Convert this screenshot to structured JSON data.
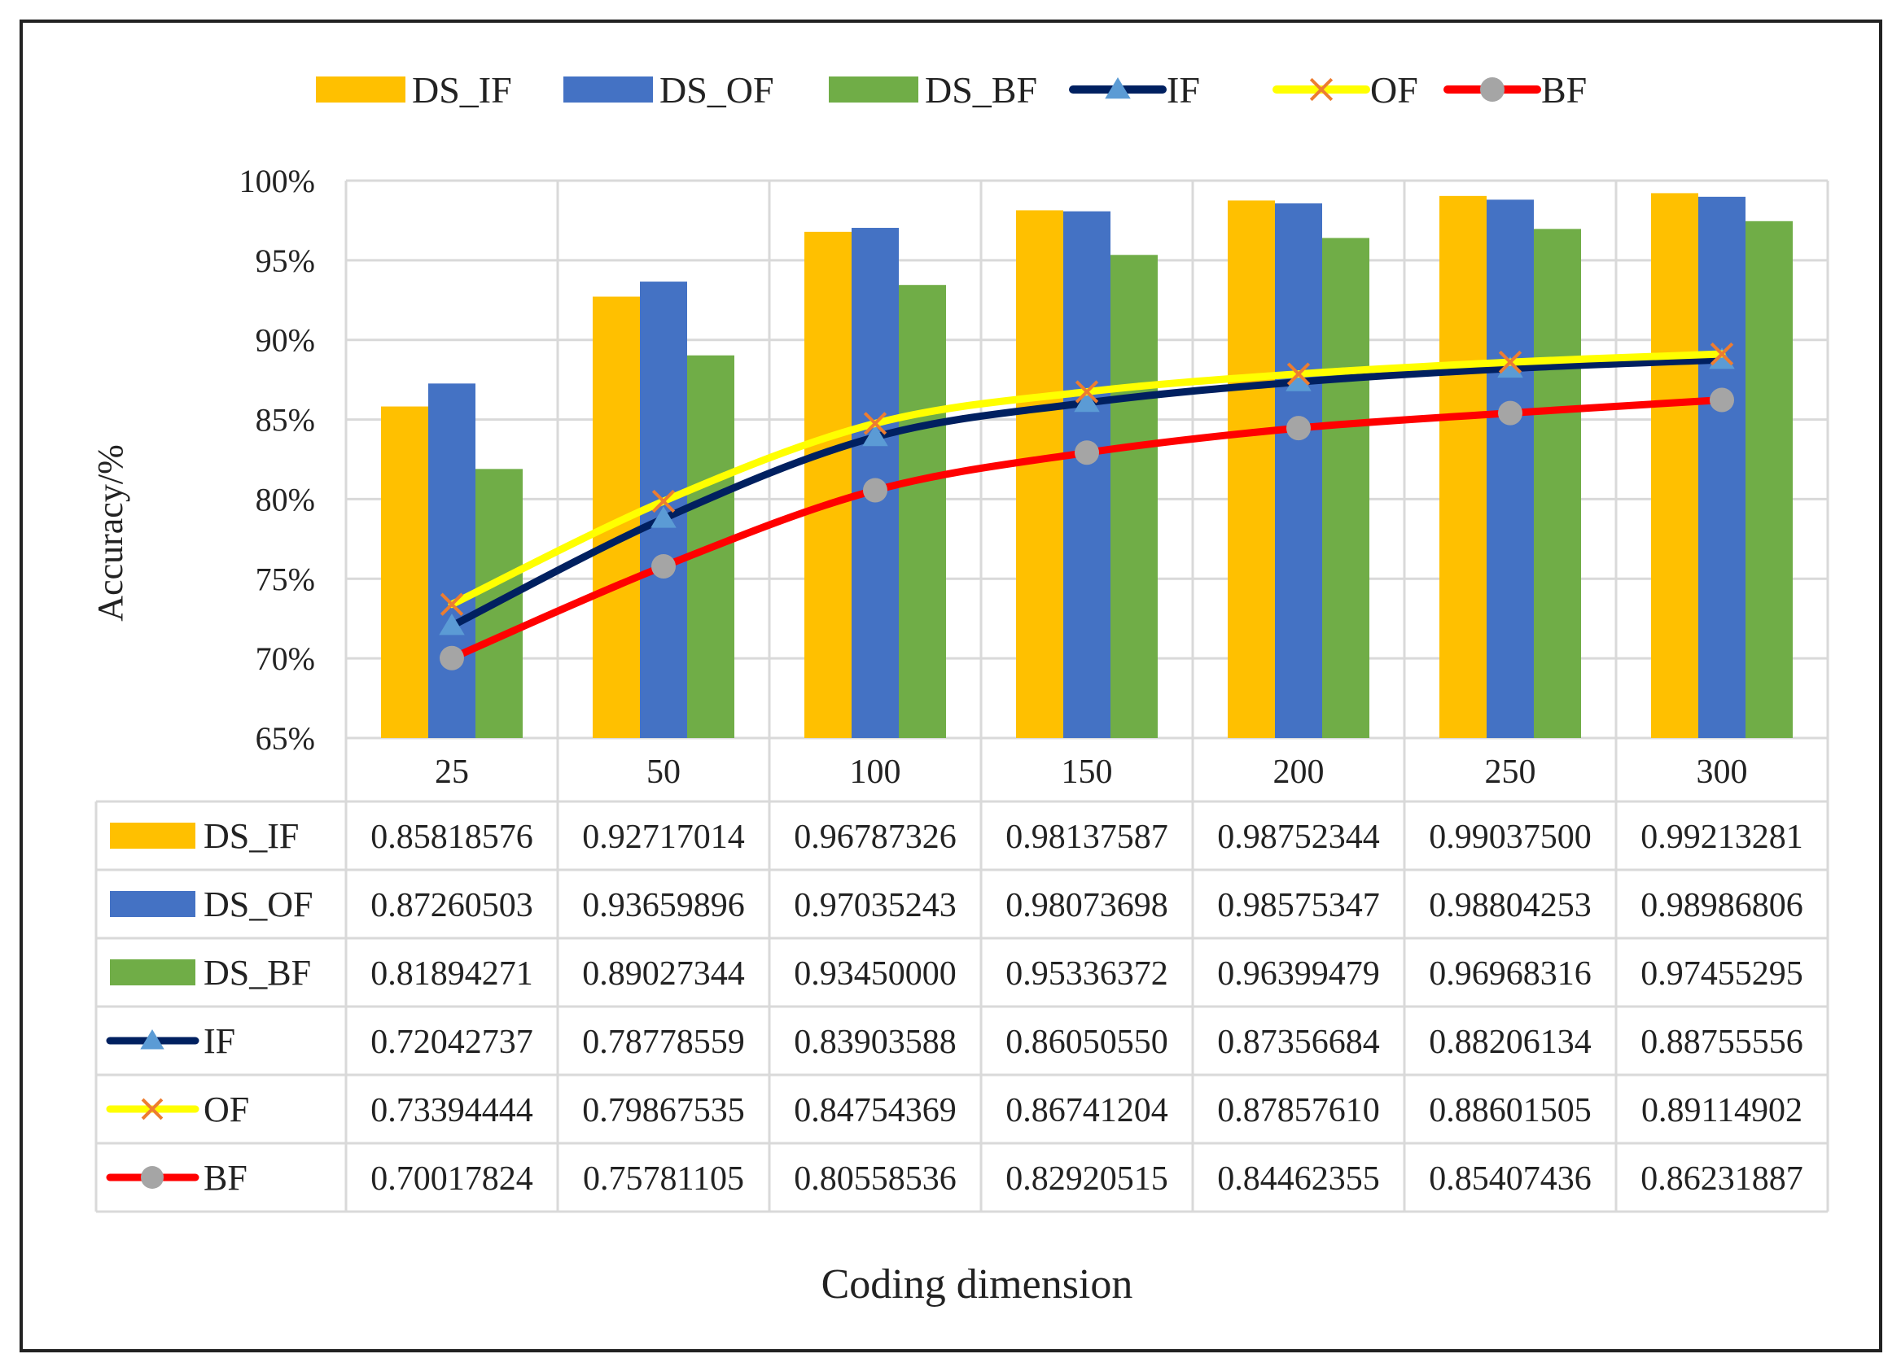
{
  "chart_data": {
    "type": "bar+line+table",
    "title": "",
    "xlabel": "Coding dimension",
    "ylabel": "Accuracy/%",
    "ylim": [
      0.65,
      1.0
    ],
    "ytick_step": 0.05,
    "ytick_labels": [
      "65%",
      "70%",
      "75%",
      "80%",
      "85%",
      "90%",
      "95%",
      "100%"
    ],
    "grid": true,
    "legend_position": "top",
    "categories": [
      "25",
      "50",
      "100",
      "150",
      "200",
      "250",
      "300"
    ],
    "series": [
      {
        "name": "DS_IF",
        "kind": "bar",
        "color": "#FFC000",
        "values": [
          0.85818576,
          0.92717014,
          0.96787326,
          0.98137587,
          0.98752344,
          0.990375,
          0.99213281
        ],
        "labels": [
          "0.85818576",
          "0.92717014",
          "0.96787326",
          "0.98137587",
          "0.98752344",
          "0.99037500",
          "0.99213281"
        ]
      },
      {
        "name": "DS_OF",
        "kind": "bar",
        "color": "#4472C4",
        "values": [
          0.87260503,
          0.93659896,
          0.97035243,
          0.98073698,
          0.98575347,
          0.98804253,
          0.98986806
        ],
        "labels": [
          "0.87260503",
          "0.93659896",
          "0.97035243",
          "0.98073698",
          "0.98575347",
          "0.98804253",
          "0.98986806"
        ]
      },
      {
        "name": "DS_BF",
        "kind": "bar",
        "color": "#70AD47",
        "values": [
          0.81894271,
          0.89027344,
          0.9345,
          0.95336372,
          0.96399479,
          0.96968316,
          0.97455295
        ],
        "labels": [
          "0.81894271",
          "0.89027344",
          "0.93450000",
          "0.95336372",
          "0.96399479",
          "0.96968316",
          "0.97455295"
        ]
      },
      {
        "name": "IF",
        "kind": "line",
        "color": "#002060",
        "marker": "triangle",
        "marker_color": "#5B9BD5",
        "values": [
          0.72042737,
          0.78778559,
          0.83903588,
          0.8605055,
          0.87356684,
          0.88206134,
          0.88755556
        ],
        "labels": [
          "0.72042737",
          "0.78778559",
          "0.83903588",
          "0.86050550",
          "0.87356684",
          "0.88206134",
          "0.88755556"
        ]
      },
      {
        "name": "OF",
        "kind": "line",
        "color": "#FFFF00",
        "marker": "x",
        "marker_color": "#ED7D31",
        "values": [
          0.73394444,
          0.79867535,
          0.84754369,
          0.86741204,
          0.8785761,
          0.88601505,
          0.89114902
        ],
        "labels": [
          "0.73394444",
          "0.79867535",
          "0.84754369",
          "0.86741204",
          "0.87857610",
          "0.88601505",
          "0.89114902"
        ]
      },
      {
        "name": "BF",
        "kind": "line",
        "color": "#FF0000",
        "marker": "circle",
        "marker_color": "#A5A5A5",
        "values": [
          0.70017824,
          0.75781105,
          0.80558536,
          0.82920515,
          0.84462355,
          0.85407436,
          0.86231887
        ],
        "labels": [
          "0.70017824",
          "0.75781105",
          "0.80558536",
          "0.82920515",
          "0.84462355",
          "0.85407436",
          "0.86231887"
        ]
      }
    ]
  }
}
